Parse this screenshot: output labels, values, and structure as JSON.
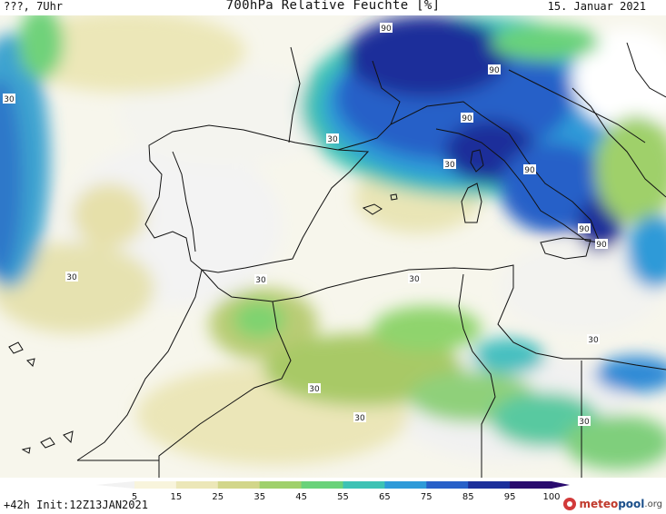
{
  "header": {
    "left": "???, 7Uhr",
    "title": "700hPa Relative Feuchte [%]",
    "date": "15. Januar 2021"
  },
  "footer": {
    "run_info": "+42h  Init:12Z13JAN2021",
    "brand_part1": "meteo",
    "brand_part2": "pool",
    "brand_part3": ".org"
  },
  "colorbar": {
    "ticks": [
      "5",
      "15",
      "25",
      "35",
      "45",
      "55",
      "65",
      "75",
      "85",
      "95",
      "100"
    ],
    "colors": [
      "#f2f2f2",
      "#f8f4dc",
      "#ece7b8",
      "#d2d68a",
      "#9fd06b",
      "#69d27a",
      "#3dc2b4",
      "#2e9ad8",
      "#2860c8",
      "#1c2f9a",
      "#2a0b6e"
    ]
  },
  "contour_labels": [
    {
      "text": "90"
    },
    {
      "text": "90"
    },
    {
      "text": "90"
    },
    {
      "text": "90"
    },
    {
      "text": "90"
    },
    {
      "text": "90"
    },
    {
      "text": "30"
    },
    {
      "text": "30"
    },
    {
      "text": "30"
    },
    {
      "text": "30"
    },
    {
      "text": "30"
    },
    {
      "text": "30"
    },
    {
      "text": "30"
    },
    {
      "text": "30"
    },
    {
      "text": "30"
    },
    {
      "text": "30"
    }
  ]
}
